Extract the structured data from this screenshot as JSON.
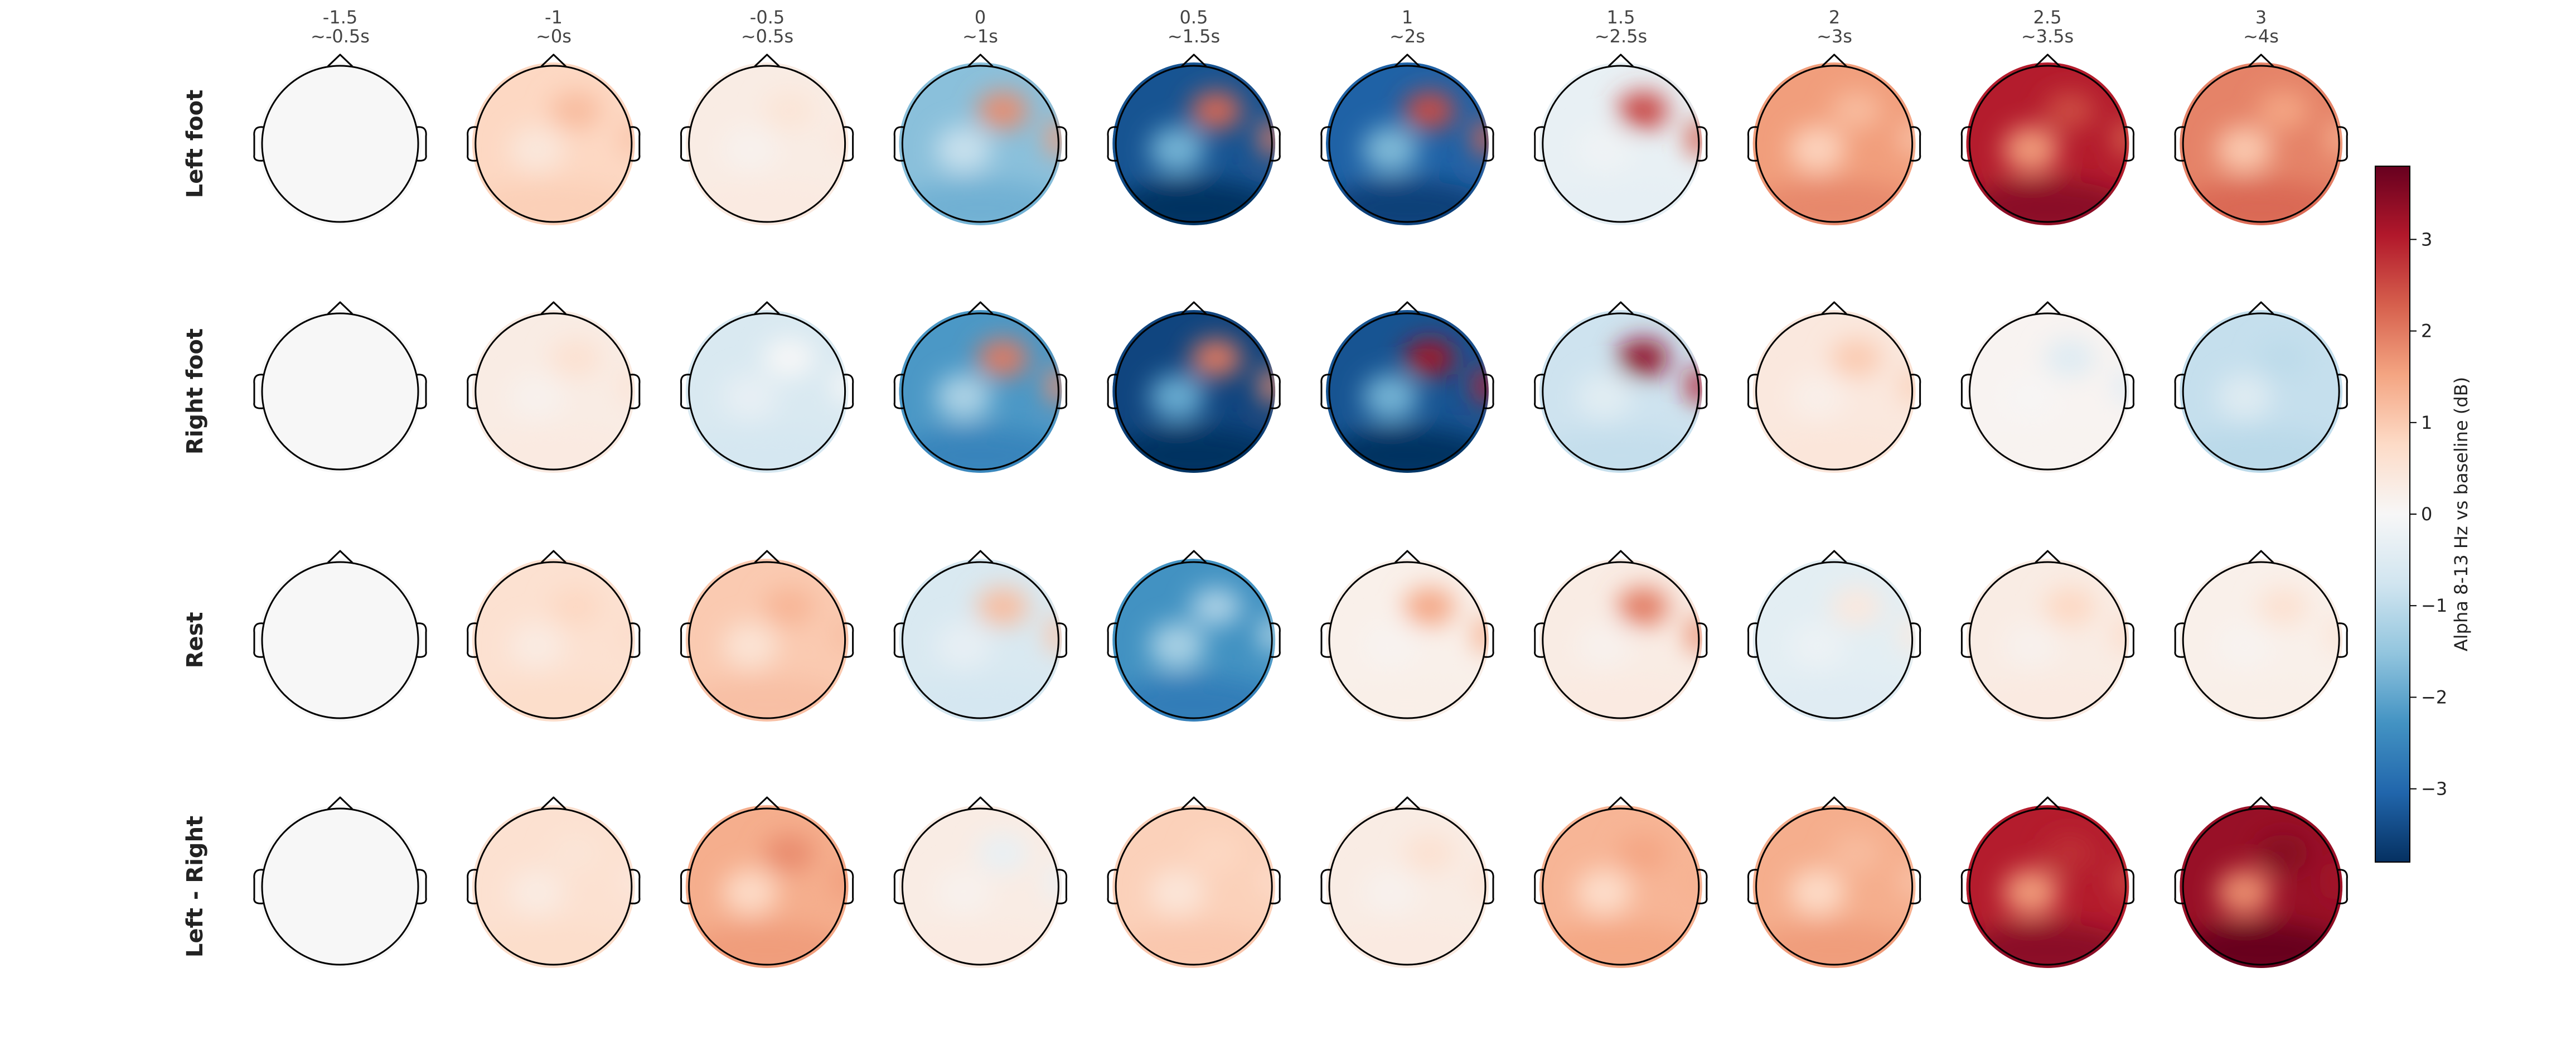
{
  "chart_data": {
    "type": "heatmap",
    "description_kind": "topographic-scalp-maps",
    "columns": [
      {
        "time": "-1.5",
        "window": "~-0.5s"
      },
      {
        "time": "-1",
        "window": "~0s"
      },
      {
        "time": "-0.5",
        "window": "~0.5s"
      },
      {
        "time": "0",
        "window": "~1s"
      },
      {
        "time": "0.5",
        "window": "~1.5s"
      },
      {
        "time": "1",
        "window": "~2s"
      },
      {
        "time": "1.5",
        "window": "~2.5s"
      },
      {
        "time": "2",
        "window": "~3s"
      },
      {
        "time": "2.5",
        "window": "~3.5s"
      },
      {
        "time": "3",
        "window": "~4s"
      }
    ],
    "rows": [
      {
        "label": "Left foot",
        "values": [
          0.0,
          0.8,
          0.3,
          -1.6,
          -3.3,
          -3.1,
          -0.3,
          1.6,
          3.0,
          1.9
        ],
        "frontal_peak": [
          0,
          1.2,
          0.5,
          1.8,
          2.2,
          2.5,
          2.6,
          1.2,
          2.5,
          1.5
        ]
      },
      {
        "label": "Right foot",
        "values": [
          0.0,
          0.3,
          -0.6,
          -2.2,
          -3.5,
          -3.3,
          -0.8,
          0.4,
          0.1,
          -0.9
        ],
        "frontal_peak": [
          0,
          0.6,
          0.0,
          2.0,
          2.0,
          3.2,
          3.4,
          1.0,
          -0.5,
          -1.0
        ]
      },
      {
        "label": "Rest",
        "values": [
          0.0,
          0.6,
          1.0,
          -0.6,
          -2.3,
          0.2,
          0.3,
          -0.4,
          0.3,
          0.2
        ],
        "frontal_peak": [
          0,
          0.8,
          1.3,
          1.2,
          -1.2,
          1.5,
          2.0,
          0.4,
          0.8,
          0.6
        ]
      },
      {
        "label": "Left - Right",
        "values": [
          0.0,
          0.6,
          1.4,
          0.3,
          0.9,
          0.3,
          1.3,
          1.4,
          3.0,
          3.3
        ],
        "frontal_peak": [
          0,
          0.5,
          1.8,
          -0.3,
          0.8,
          0.6,
          1.5,
          1.2,
          2.8,
          3.5
        ]
      }
    ],
    "colorbar": {
      "label": "Alpha 8-13 Hz vs baseline (dB)",
      "ticks": [
        "3",
        "2",
        "1",
        "0",
        "−1",
        "−2",
        "−3"
      ],
      "tick_values": [
        3,
        2,
        1,
        0,
        -1,
        -2,
        -3
      ],
      "range": [
        -3.8,
        3.8
      ],
      "colormap": "RdBu_r",
      "colors": [
        "#053061",
        "#2166ac",
        "#4393c3",
        "#92c5de",
        "#d1e5f0",
        "#f7f7f7",
        "#fddbc7",
        "#f4a582",
        "#d6604d",
        "#b2182b",
        "#67001f"
      ]
    }
  }
}
